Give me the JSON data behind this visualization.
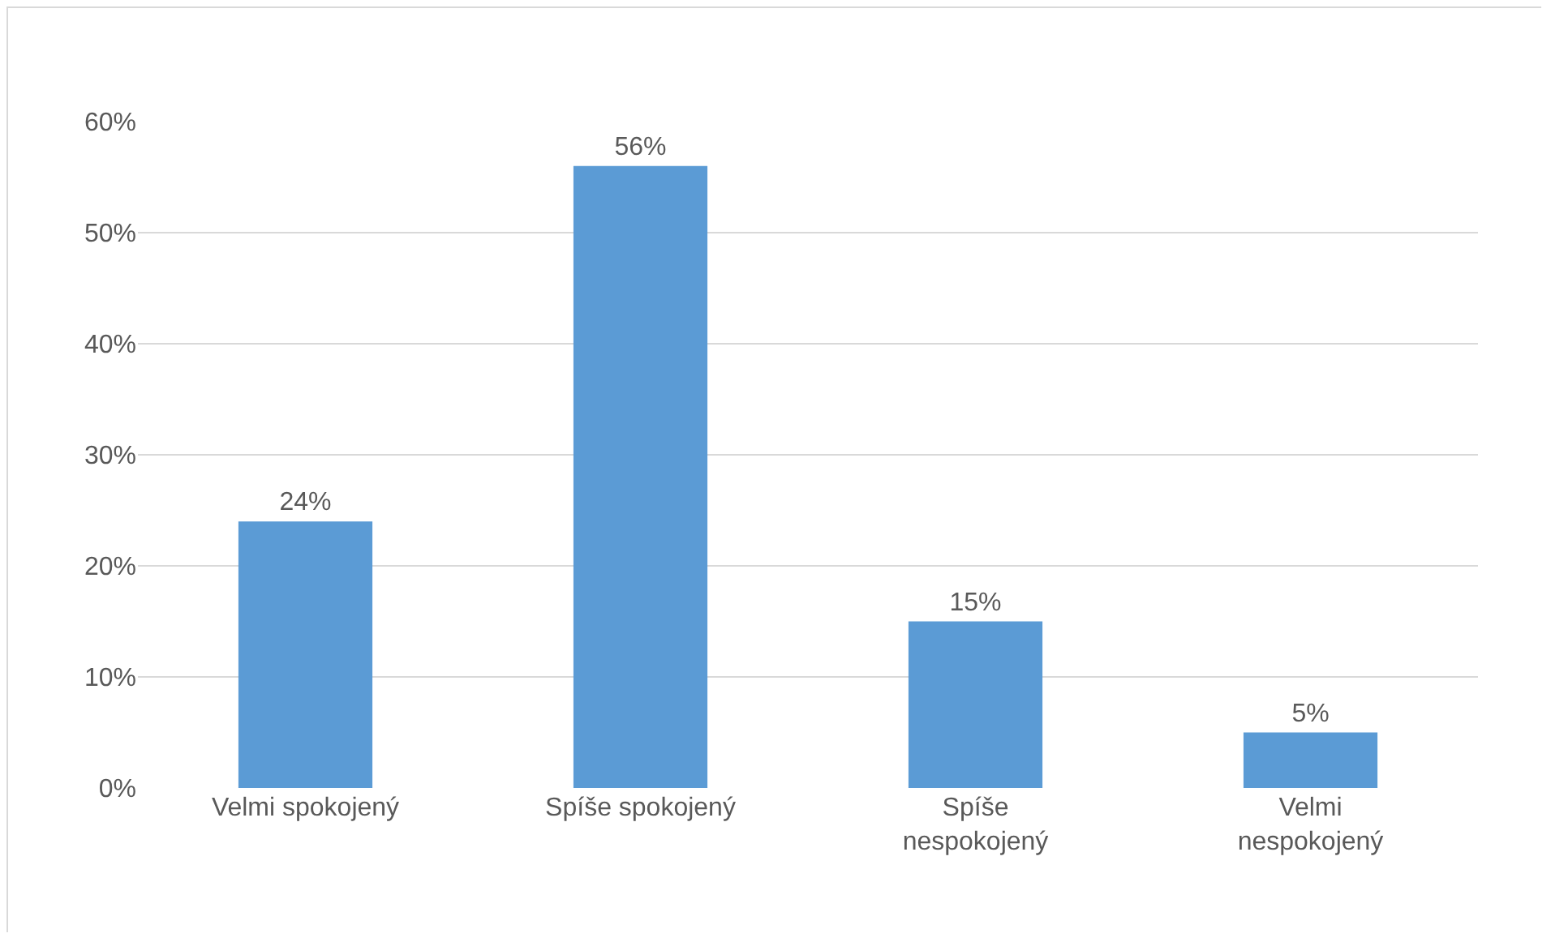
{
  "chart_data": {
    "type": "bar",
    "categories": [
      "Velmi spokojený",
      "Spíše spokojený",
      "Spíše nespokojený",
      "Velmi nespokojený"
    ],
    "values": [
      24,
      56,
      15,
      5
    ],
    "value_labels": [
      "24%",
      "56%",
      "15%",
      "5%"
    ],
    "color": "#5b9bd5",
    "ylim": [
      0,
      60
    ],
    "yticks": [
      {
        "value": 0,
        "label": "0%"
      },
      {
        "value": 10,
        "label": "10%"
      },
      {
        "value": 20,
        "label": "20%"
      },
      {
        "value": 30,
        "label": "30%"
      },
      {
        "value": 40,
        "label": "40%"
      },
      {
        "value": 50,
        "label": "50%"
      },
      {
        "value": 60,
        "label": "60%"
      }
    ],
    "grid": "y"
  }
}
